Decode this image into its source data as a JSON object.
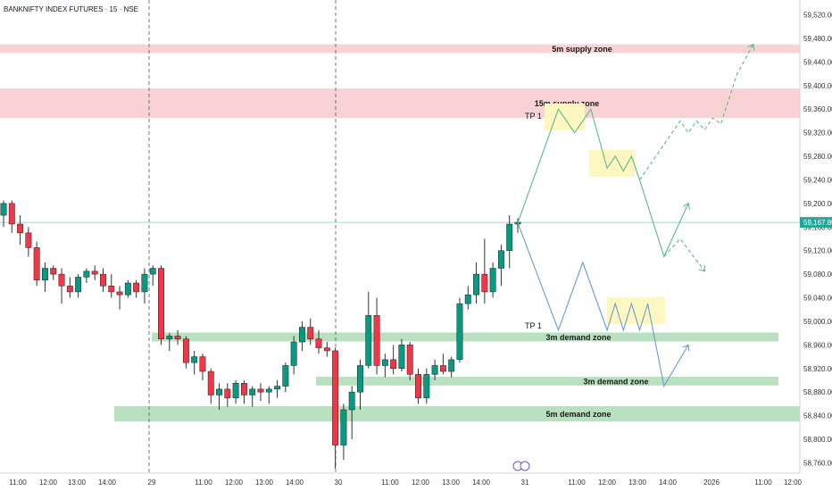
{
  "chart_title": "BANKNIFTY INDEX FUTURES · 15 · NSE",
  "price_axis": {
    "ticks": [
      59520,
      59480,
      59440,
      59400,
      59360,
      59320,
      59280,
      59240,
      59200,
      59160,
      59120,
      59080,
      59040,
      59000,
      58960,
      58920,
      58880,
      58840,
      58800,
      58760
    ],
    "tick_labels": [
      "59,520.00",
      "59,480.00",
      "59,440.00",
      "59,400.00",
      "59,360.00",
      "59,320.00",
      "59,280.00",
      "59,240.00",
      "59,200.00",
      "59,160.00",
      "59,120.00",
      "59,080.00",
      "59,040.00",
      "59,000.00",
      "58,960.00",
      "58,920.00",
      "58,880.00",
      "58,840.00",
      "58,800.00",
      "58,760.00"
    ],
    "current_price_label": "59,167.80",
    "current_price": 59167.8,
    "current_price_color": "#26a69a"
  },
  "time_axis": {
    "labels": [
      "11:00",
      "12:00",
      "13:00",
      "14:00",
      "29",
      "11:00",
      "12:00",
      "13:00",
      "14:00",
      "30",
      "11:00",
      "12:00",
      "13:00",
      "14:00",
      "31",
      "11:00",
      "12:00",
      "13:00",
      "14:00",
      "2026",
      "11:00",
      "12:00"
    ]
  },
  "zones": [
    {
      "label": "5m supply zone",
      "kind": "supply",
      "top": 59470,
      "bottom": 59455
    },
    {
      "label": "15m supply zone",
      "kind": "supply",
      "top": 59395,
      "bottom": 59345
    },
    {
      "label": "3m demand zone",
      "kind": "demand",
      "top": 58981,
      "bottom": 58966
    },
    {
      "label": "3m demand zone",
      "kind": "demand",
      "top": 58906,
      "bottom": 58891
    },
    {
      "label": "5m demand  zone",
      "kind": "demand",
      "top": 58856,
      "bottom": 58830
    }
  ],
  "annotations": {
    "tp_upper": "TP 1",
    "tp_lower": "TP 1"
  },
  "colors": {
    "up": "#089981",
    "down": "#f23645",
    "supply_zone": "#f9d2d6",
    "demand_zone": "#b9e0bf",
    "projection_up": "#5bb98b",
    "projection_down": "#6a9bd3",
    "highlight": "#fff7c2",
    "current_line": "#9fd8c9"
  },
  "chart_data": {
    "type": "candlestick",
    "title": "BANKNIFTY INDEX FUTURES · 15 · NSE",
    "ylim": [
      58750,
      59530
    ],
    "grid": false,
    "candles": [
      {
        "o": 59180,
        "h": 59205,
        "l": 59160,
        "c": 59200
      },
      {
        "o": 59200,
        "h": 59205,
        "l": 59150,
        "c": 59165
      },
      {
        "o": 59165,
        "h": 59180,
        "l": 59130,
        "c": 59150
      },
      {
        "o": 59150,
        "h": 59160,
        "l": 59110,
        "c": 59125
      },
      {
        "o": 59125,
        "h": 59135,
        "l": 59060,
        "c": 59070
      },
      {
        "o": 59070,
        "h": 59100,
        "l": 59050,
        "c": 59090
      },
      {
        "o": 59090,
        "h": 59095,
        "l": 59070,
        "c": 59080
      },
      {
        "o": 59080,
        "h": 59090,
        "l": 59030,
        "c": 59060
      },
      {
        "o": 59060,
        "h": 59075,
        "l": 59040,
        "c": 59050
      },
      {
        "o": 59050,
        "h": 59080,
        "l": 59040,
        "c": 59075
      },
      {
        "o": 59075,
        "h": 59090,
        "l": 59065,
        "c": 59085
      },
      {
        "o": 59085,
        "h": 59095,
        "l": 59070,
        "c": 59080
      },
      {
        "o": 59080,
        "h": 59090,
        "l": 59050,
        "c": 59060
      },
      {
        "o": 59060,
        "h": 59080,
        "l": 59040,
        "c": 59050
      },
      {
        "o": 59050,
        "h": 59060,
        "l": 59020,
        "c": 59045
      },
      {
        "o": 59045,
        "h": 59070,
        "l": 59040,
        "c": 59065
      },
      {
        "o": 59065,
        "h": 59070,
        "l": 59040,
        "c": 59050
      },
      {
        "o": 59050,
        "h": 59090,
        "l": 59030,
        "c": 59080
      },
      {
        "o": 59080,
        "h": 59095,
        "l": 59060,
        "c": 59090
      },
      {
        "o": 59090,
        "h": 59095,
        "l": 58960,
        "c": 58970
      },
      {
        "o": 58970,
        "h": 58980,
        "l": 58950,
        "c": 58975
      },
      {
        "o": 58975,
        "h": 58985,
        "l": 58960,
        "c": 58970
      },
      {
        "o": 58970,
        "h": 58975,
        "l": 58920,
        "c": 58930
      },
      {
        "o": 58930,
        "h": 58950,
        "l": 58910,
        "c": 58940
      },
      {
        "o": 58940,
        "h": 58945,
        "l": 58900,
        "c": 58915
      },
      {
        "o": 58915,
        "h": 58920,
        "l": 58860,
        "c": 58875
      },
      {
        "o": 58875,
        "h": 58895,
        "l": 58850,
        "c": 58885
      },
      {
        "o": 58885,
        "h": 58895,
        "l": 58855,
        "c": 58870
      },
      {
        "o": 58870,
        "h": 58900,
        "l": 58860,
        "c": 58895
      },
      {
        "o": 58895,
        "h": 58900,
        "l": 58860,
        "c": 58875
      },
      {
        "o": 58875,
        "h": 58890,
        "l": 58855,
        "c": 58885
      },
      {
        "o": 58885,
        "h": 58895,
        "l": 58865,
        "c": 58880
      },
      {
        "o": 58880,
        "h": 58890,
        "l": 58860,
        "c": 58885
      },
      {
        "o": 58885,
        "h": 58900,
        "l": 58870,
        "c": 58890
      },
      {
        "o": 58890,
        "h": 58930,
        "l": 58880,
        "c": 58925
      },
      {
        "o": 58925,
        "h": 58975,
        "l": 58910,
        "c": 58965
      },
      {
        "o": 58965,
        "h": 59000,
        "l": 58950,
        "c": 58990
      },
      {
        "o": 58990,
        "h": 59005,
        "l": 58960,
        "c": 58970
      },
      {
        "o": 58970,
        "h": 58985,
        "l": 58945,
        "c": 58955
      },
      {
        "o": 58955,
        "h": 58965,
        "l": 58940,
        "c": 58950
      },
      {
        "o": 58950,
        "h": 58955,
        "l": 58750,
        "c": 58790
      },
      {
        "o": 58790,
        "h": 58860,
        "l": 58765,
        "c": 58850
      },
      {
        "o": 58850,
        "h": 58890,
        "l": 58800,
        "c": 58880
      },
      {
        "o": 58880,
        "h": 58935,
        "l": 58850,
        "c": 58925
      },
      {
        "o": 58925,
        "h": 59050,
        "l": 58920,
        "c": 59010
      },
      {
        "o": 59010,
        "h": 59040,
        "l": 58910,
        "c": 58925
      },
      {
        "o": 58925,
        "h": 58945,
        "l": 58905,
        "c": 58935
      },
      {
        "o": 58935,
        "h": 58960,
        "l": 58910,
        "c": 58920
      },
      {
        "o": 58920,
        "h": 58970,
        "l": 58915,
        "c": 58960
      },
      {
        "o": 58960,
        "h": 58965,
        "l": 58900,
        "c": 58910
      },
      {
        "o": 58910,
        "h": 58920,
        "l": 58860,
        "c": 58870
      },
      {
        "o": 58870,
        "h": 58920,
        "l": 58860,
        "c": 58910
      },
      {
        "o": 58910,
        "h": 58935,
        "l": 58900,
        "c": 58925
      },
      {
        "o": 58925,
        "h": 58945,
        "l": 58910,
        "c": 58915
      },
      {
        "o": 58915,
        "h": 58940,
        "l": 58905,
        "c": 58935
      },
      {
        "o": 58935,
        "h": 59040,
        "l": 58930,
        "c": 59030
      },
      {
        "o": 59030,
        "h": 59060,
        "l": 59020,
        "c": 59045
      },
      {
        "o": 59045,
        "h": 59100,
        "l": 59030,
        "c": 59080
      },
      {
        "o": 59080,
        "h": 59140,
        "l": 59030,
        "c": 59050
      },
      {
        "o": 59050,
        "h": 59100,
        "l": 59040,
        "c": 59090
      },
      {
        "o": 59090,
        "h": 59130,
        "l": 59060,
        "c": 59120
      },
      {
        "o": 59120,
        "h": 59180,
        "l": 59090,
        "c": 59165
      },
      {
        "o": 59165,
        "h": 59175,
        "l": 59150,
        "c": 59168
      }
    ],
    "projections": [
      {
        "name": "upper",
        "color_key": "projection_up",
        "points": [
          [
            0,
            59167
          ],
          [
            5,
            59360
          ],
          [
            7,
            59320
          ],
          [
            9,
            59360
          ],
          [
            11,
            59260
          ],
          [
            12,
            59280
          ],
          [
            13,
            59255
          ],
          [
            14,
            59280
          ],
          [
            15,
            59240
          ],
          [
            18,
            59110
          ],
          [
            21,
            59200
          ]
        ]
      },
      {
        "name": "lower",
        "color_key": "projection_down",
        "points": [
          [
            0,
            59167
          ],
          [
            5,
            58985
          ],
          [
            8,
            59100
          ],
          [
            11,
            58985
          ],
          [
            12,
            59030
          ],
          [
            13,
            58985
          ],
          [
            14,
            59030
          ],
          [
            15,
            58985
          ],
          [
            16,
            59030
          ],
          [
            18,
            58890
          ],
          [
            21,
            58960
          ]
        ]
      },
      {
        "name": "upper-dashed",
        "color_key": "projection_up",
        "dashed": true,
        "points": [
          [
            15,
            59240
          ],
          [
            19,
            59320
          ],
          [
            20,
            59340
          ],
          [
            21,
            59320
          ],
          [
            22,
            59340
          ],
          [
            23,
            59325
          ],
          [
            24,
            59345
          ],
          [
            25,
            59335
          ],
          [
            27,
            59420
          ],
          [
            29,
            59470
          ]
        ]
      },
      {
        "name": "mid-dashed",
        "color_key": "projection_up",
        "dashed": true,
        "points": [
          [
            18,
            59110
          ],
          [
            20,
            59140
          ],
          [
            23,
            59085
          ]
        ]
      }
    ]
  }
}
